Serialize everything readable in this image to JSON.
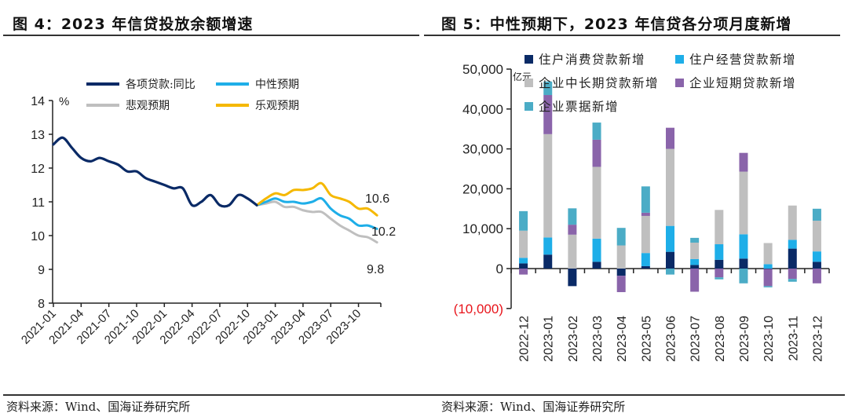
{
  "figures": [
    {
      "title": "图 4：2023 年信贷投放余额增速",
      "source": "资料来源：Wind、国海证券研究所"
    },
    {
      "title": "图 5：中性预期下，2023 年信贷各分项月度新增",
      "source": "资料来源：Wind、国海证券研究所"
    }
  ],
  "chart_data": [
    {
      "type": "line",
      "title": "2023 年信贷投放余额增速",
      "ylabel": "%",
      "xlabel": "",
      "ylim": [
        8,
        14
      ],
      "yticks": [
        8,
        9,
        10,
        11,
        12,
        13,
        14
      ],
      "xtick_labels": [
        "2021-01",
        "2021-04",
        "2021-07",
        "2021-10",
        "2022-01",
        "2022-04",
        "2022-07",
        "2022-10",
        "2023-01",
        "2023-04",
        "2023-07",
        "2023-10"
      ],
      "legend": {
        "placement": "top",
        "entries": [
          "各项贷款:同比",
          "中性预期",
          "悲观预期",
          "乐观预期"
        ]
      },
      "colors": {
        "actual": "#0a2a66",
        "neutral": "#1eaee8",
        "pessimistic": "#bfbfbf",
        "optimistic": "#f5b800"
      },
      "x": [
        "2021-01",
        "2021-02",
        "2021-03",
        "2021-04",
        "2021-05",
        "2021-06",
        "2021-07",
        "2021-08",
        "2021-09",
        "2021-10",
        "2021-11",
        "2021-12",
        "2022-01",
        "2022-02",
        "2022-03",
        "2022-04",
        "2022-05",
        "2022-06",
        "2022-07",
        "2022-08",
        "2022-09",
        "2022-10",
        "2022-11",
        "2022-12",
        "2023-01",
        "2023-02",
        "2023-03",
        "2023-04",
        "2023-05",
        "2023-06",
        "2023-07",
        "2023-08",
        "2023-09",
        "2023-10",
        "2023-11",
        "2023-12"
      ],
      "series": [
        {
          "name": "各项贷款:同比",
          "key": "actual",
          "start_index": 0,
          "values": [
            12.7,
            12.9,
            12.6,
            12.3,
            12.2,
            12.3,
            12.2,
            12.1,
            11.9,
            11.9,
            11.7,
            11.6,
            11.5,
            11.4,
            11.4,
            10.9,
            11.0,
            11.2,
            10.9,
            10.9,
            11.2,
            11.1,
            10.9
          ]
        },
        {
          "name": "中性预期",
          "key": "neutral",
          "start_index": 22,
          "values": [
            10.9,
            11.0,
            11.1,
            11.0,
            11.0,
            10.95,
            11.0,
            11.1,
            10.8,
            10.6,
            10.5,
            10.3,
            10.3,
            10.2
          ]
        },
        {
          "name": "悲观预期",
          "key": "pessimistic",
          "start_index": 22,
          "values": [
            10.9,
            10.95,
            11.0,
            10.85,
            10.85,
            10.75,
            10.7,
            10.7,
            10.5,
            10.3,
            10.15,
            10.0,
            9.95,
            9.8
          ]
        },
        {
          "name": "乐观预期",
          "key": "optimistic",
          "start_index": 22,
          "values": [
            10.9,
            11.1,
            11.25,
            11.2,
            11.35,
            11.35,
            11.4,
            11.55,
            11.2,
            11.1,
            11.0,
            10.8,
            10.8,
            10.6
          ]
        }
      ],
      "annotations": [
        {
          "text": "10.6",
          "series": "乐观预期"
        },
        {
          "text": "10.2",
          "series": "中性预期"
        },
        {
          "text": "9.8",
          "series": "悲观预期"
        }
      ]
    },
    {
      "type": "bar",
      "stacked": true,
      "title": "中性预期下，2023 年信贷各分项月度新增",
      "ylabel": "亿元",
      "xlabel": "",
      "ylim": [
        -10000,
        50000
      ],
      "yticks": [
        -10000,
        0,
        10000,
        20000,
        30000,
        40000,
        50000
      ],
      "ytick_labels": [
        "(10,000)",
        "0",
        "10,000",
        "20,000",
        "30,000",
        "40,000",
        "50,000"
      ],
      "negative_tick_color": "#e8141b",
      "categories": [
        "2022-12",
        "2023-01",
        "2023-02",
        "2023-03",
        "2023-04",
        "2023-05",
        "2023-06",
        "2023-07",
        "2023-08",
        "2023-09",
        "2023-10",
        "2023-11",
        "2023-12"
      ],
      "legend": {
        "placement": "top",
        "entries": [
          "住户消费贷款新增",
          "住户经营贷款新增",
          "企业中长期贷款新增",
          "企业短期贷款新增",
          "企业票据新增"
        ]
      },
      "series": [
        {
          "name": "住户消费贷款新增",
          "color": "#0a2a66",
          "values": [
            1300,
            3500,
            -4400,
            1700,
            -1800,
            600,
            4200,
            900,
            2200,
            2500,
            -100,
            5000,
            1700
          ]
        },
        {
          "name": "住户经营贷款新增",
          "color": "#1eaee8",
          "values": [
            1400,
            4300,
            0,
            5800,
            0,
            3300,
            6500,
            1500,
            3900,
            6100,
            1100,
            2200,
            2600
          ]
        },
        {
          "name": "企业中长期贷款新增",
          "color": "#bfbfbf",
          "values": [
            6800,
            25900,
            8500,
            18000,
            5800,
            9300,
            19300,
            4100,
            8600,
            15700,
            5300,
            8600,
            7700
          ]
        },
        {
          "name": "企业短期贷款新增",
          "color": "#8a64aa",
          "values": [
            -1500,
            9800,
            2500,
            6800,
            -4100,
            800,
            5300,
            -5800,
            -2200,
            4700,
            -4300,
            -2600,
            -3700
          ]
        },
        {
          "name": "企业票据新增",
          "color": "#4bacc6",
          "values": [
            4900,
            3400,
            4100,
            4300,
            4400,
            6600,
            -1500,
            1200,
            -500,
            -3700,
            -300,
            -700,
            3000
          ]
        }
      ]
    }
  ]
}
